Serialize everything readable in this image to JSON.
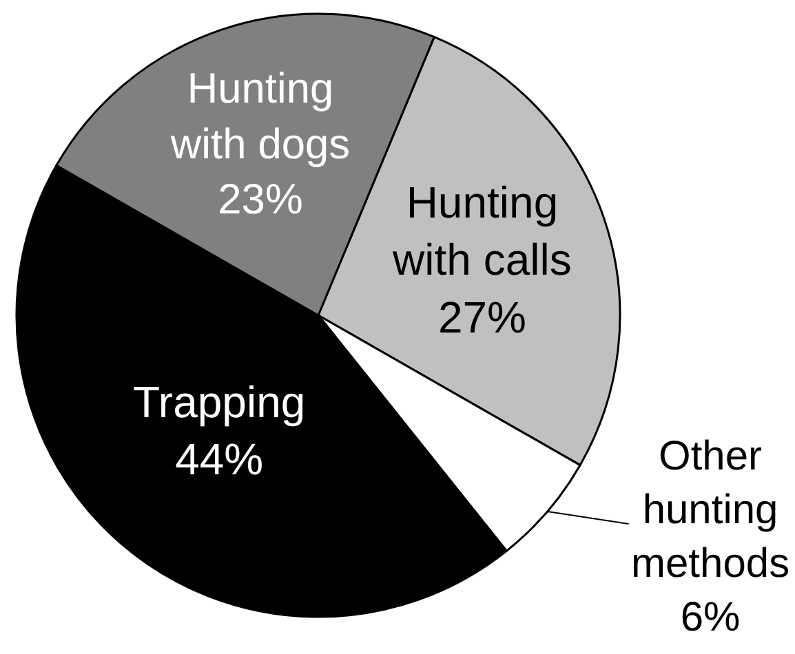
{
  "chart_data": {
    "type": "pie",
    "categories": [
      "Hunting with calls",
      "Other hunting methods",
      "Trapping",
      "Hunting with dogs"
    ],
    "values": [
      27,
      6,
      44,
      23
    ],
    "colors": [
      "#c0c0c0",
      "#ffffff",
      "#000000",
      "#808080"
    ],
    "value_labels": [
      "27%",
      "6%",
      "44%",
      "23%"
    ]
  }
}
